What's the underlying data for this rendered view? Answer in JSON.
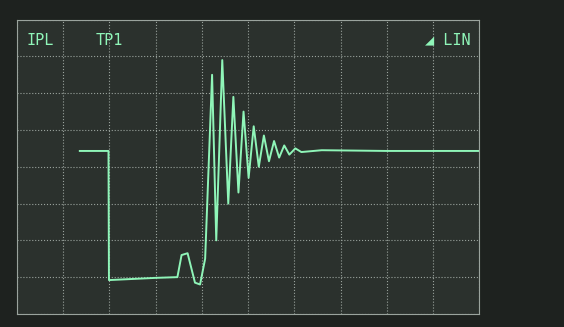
{
  "chart_data": {
    "type": "line",
    "annotations": [
      "IPL",
      "TP1",
      "◢ LIN"
    ],
    "x": [
      1.36,
      1.98,
      1.99,
      2.5,
      3.0,
      3.47,
      3.56,
      3.69,
      3.85,
      3.96,
      4.07,
      4.22,
      4.31,
      4.44,
      4.57,
      4.68,
      4.79,
      4.9,
      5.01,
      5.12,
      5.23,
      5.34,
      5.45,
      5.56,
      5.67,
      5.78,
      5.89,
      6.02,
      6.15,
      6.59,
      8.0,
      10.0
    ],
    "values": [
      4.43,
      4.43,
      0.92,
      0.95,
      0.98,
      1.0,
      1.6,
      1.65,
      0.85,
      0.8,
      1.5,
      6.5,
      2.0,
      6.9,
      3.0,
      5.9,
      3.3,
      5.5,
      3.7,
      5.1,
      4.0,
      4.85,
      4.15,
      4.7,
      4.25,
      4.58,
      4.33,
      4.5,
      4.4,
      4.45,
      4.43,
      4.43
    ],
    "color": "#8ff5b8",
    "xlim": [
      0,
      10
    ],
    "xticks": [
      0,
      1,
      2,
      3,
      4,
      5,
      6,
      7,
      8,
      9,
      10
    ],
    "ylim": [
      0,
      8
    ],
    "yticks": [
      0,
      1,
      2,
      3,
      4,
      5,
      6,
      7,
      8
    ],
    "grid": true,
    "tick_labels": false
  }
}
